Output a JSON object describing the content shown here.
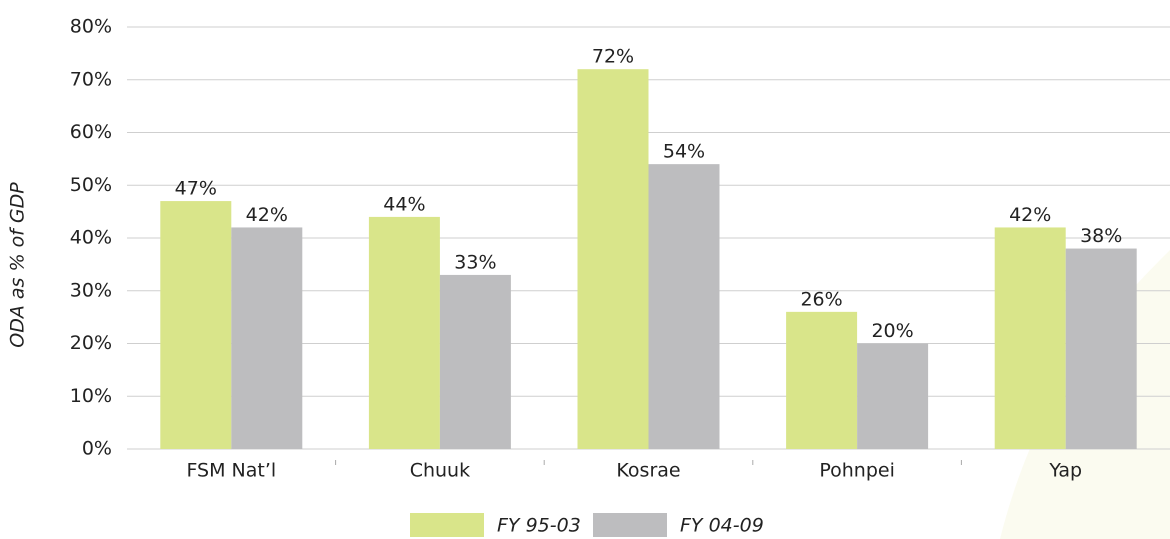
{
  "chart_data": {
    "type": "bar",
    "y_label": "ODA as % of GDP",
    "categories": [
      "FSM Nat’l",
      "Chuuk",
      "Kosrae",
      "Pohnpei",
      "Yap"
    ],
    "series": [
      {
        "name": "FY 95-03",
        "color": "#d9e58a",
        "values": [
          47,
          44,
          72,
          26,
          42
        ],
        "value_labels": [
          "47%",
          "44%",
          "72%",
          "26%",
          "42%"
        ]
      },
      {
        "name": "FY 04-09",
        "color": "#bdbdbf",
        "values": [
          42,
          33,
          54,
          20,
          38
        ],
        "value_labels": [
          "42%",
          "33%",
          "54%",
          "20%",
          "38%"
        ]
      }
    ],
    "ylim": [
      0,
      80
    ],
    "yticks": [
      {
        "value": 0,
        "label": "0%"
      },
      {
        "value": 10,
        "label": "10%"
      },
      {
        "value": 20,
        "label": "20%"
      },
      {
        "value": 30,
        "label": "30%"
      },
      {
        "value": 40,
        "label": "40%"
      },
      {
        "value": 50,
        "label": "50%"
      },
      {
        "value": 60,
        "label": "60%"
      },
      {
        "value": 70,
        "label": "70%"
      },
      {
        "value": 80,
        "label": "80%"
      }
    ],
    "grid": true
  }
}
